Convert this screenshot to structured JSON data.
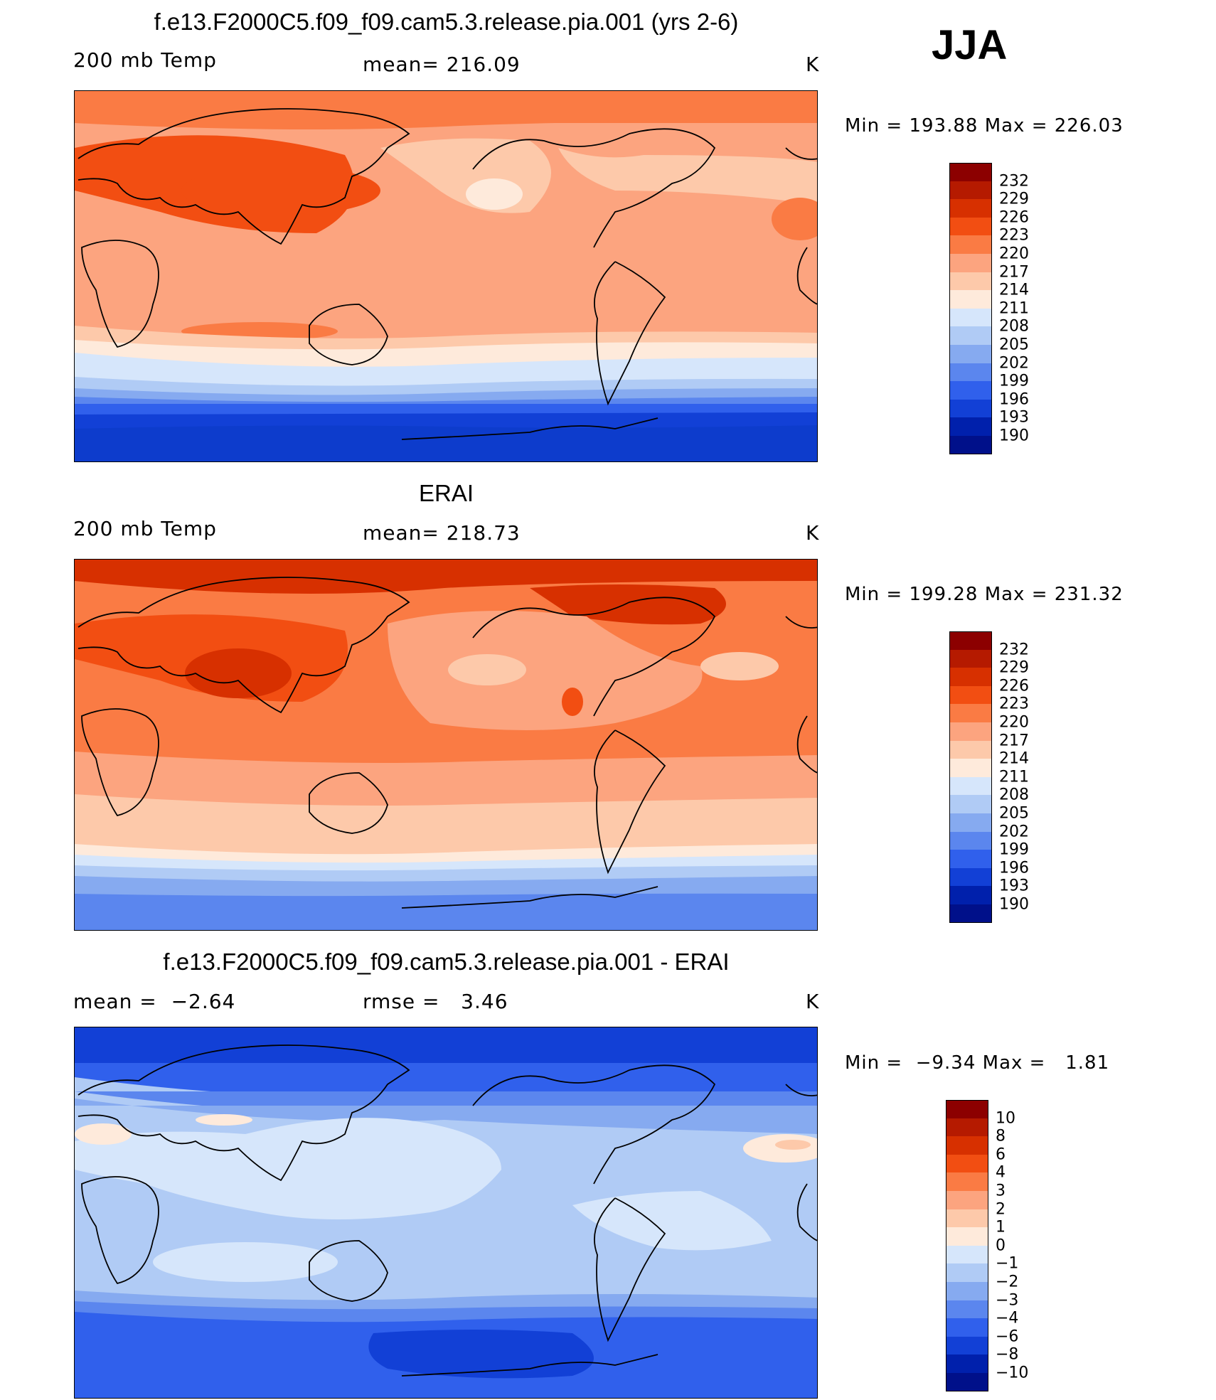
{
  "season": "JJA",
  "panels": [
    {
      "title": "f.e13.F2000C5.f09_f09.cam5.3.release.pia.001 (yrs 2-6)",
      "left_label": "200 mb Temp",
      "center_label": "mean= 216.09",
      "right_label": "K",
      "minmax": "Min = 193.88 Max = 226.03"
    },
    {
      "title": "ERAI",
      "left_label": "200 mb Temp",
      "center_label": "mean= 218.73",
      "right_label": "K",
      "minmax": "Min = 199.28 Max = 231.32"
    },
    {
      "title": "f.e13.F2000C5.f09_f09.cam5.3.release.pia.001 - ERAI",
      "left_label": "mean =  −2.64",
      "center_label": "rmse =   3.46",
      "right_label": "K",
      "minmax": "Min =  −9.34 Max =   1.81"
    }
  ],
  "colorbars": {
    "temp": {
      "labels": [
        "232",
        "229",
        "226",
        "223",
        "220",
        "217",
        "214",
        "211",
        "208",
        "205",
        "202",
        "199",
        "196",
        "193",
        "190"
      ],
      "colors": [
        "#8c0000",
        "#b51a00",
        "#d73000",
        "#f24e12",
        "#fa7b44",
        "#fca47f",
        "#fdc9aa",
        "#feeadb",
        "#d6e6fb",
        "#b0cbf5",
        "#86aaf0",
        "#5b86ee",
        "#3060ec",
        "#1240d6",
        "#0020ac",
        "#00108a"
      ]
    },
    "diff": {
      "labels": [
        "10",
        "8",
        "6",
        "4",
        "3",
        "2",
        "1",
        "0",
        "−1",
        "−2",
        "−3",
        "−4",
        "−6",
        "−8",
        "−10"
      ],
      "colors": [
        "#8c0000",
        "#b51a00",
        "#d73000",
        "#f24e12",
        "#fa7b44",
        "#fca47f",
        "#fdc9aa",
        "#feeadb",
        "#d6e6fb",
        "#b0cbf5",
        "#86aaf0",
        "#5b86ee",
        "#3060ec",
        "#1240d6",
        "#0020ac",
        "#00108a"
      ]
    }
  }
}
